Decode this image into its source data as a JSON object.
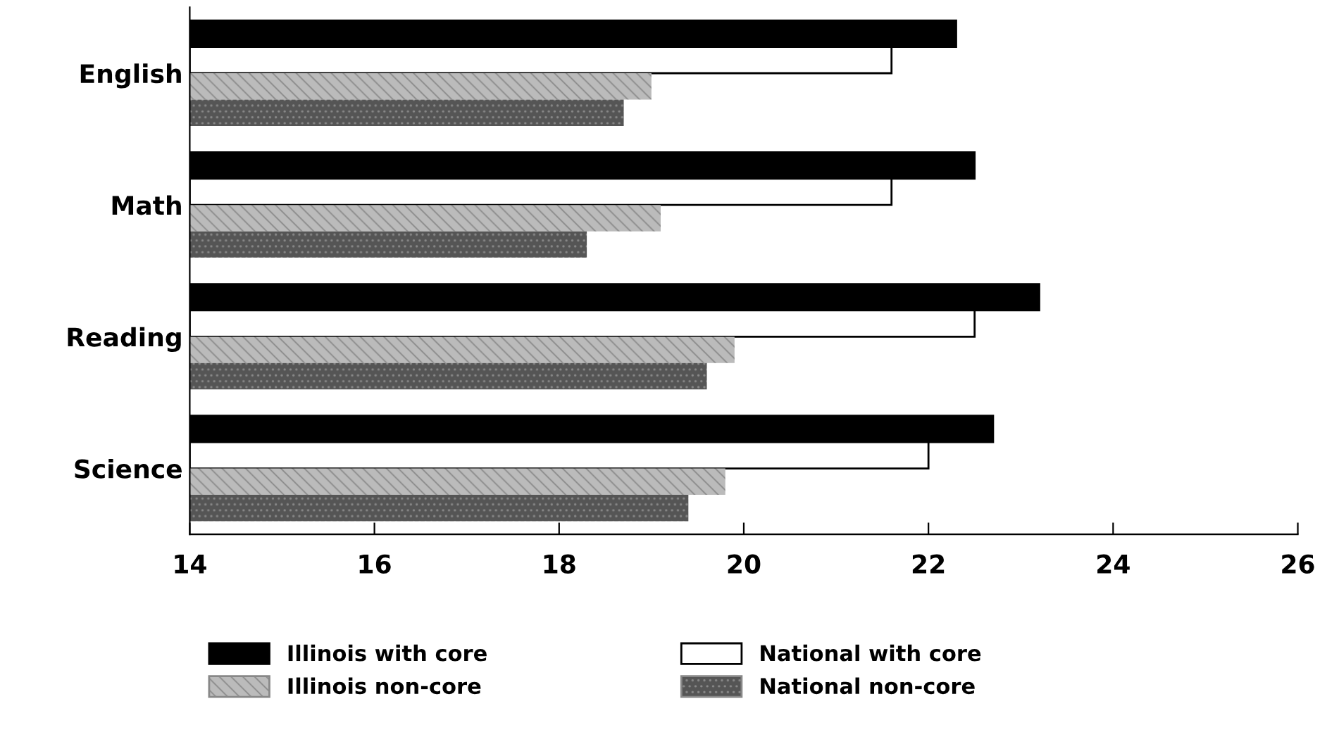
{
  "chart_data": {
    "type": "bar",
    "orientation": "horizontal",
    "categories": [
      "English",
      "Math",
      "Reading",
      "Science"
    ],
    "series": [
      {
        "name": "Illinois with core",
        "color": "#000000",
        "values": [
          22.3,
          22.5,
          23.2,
          22.7
        ]
      },
      {
        "name": "National with core",
        "color": "#ffffff",
        "values": [
          21.6,
          21.6,
          22.5,
          22.0
        ]
      },
      {
        "name": "Illinois non-core",
        "color": "#bbbbbb",
        "values": [
          19.0,
          19.1,
          19.9,
          19.8
        ]
      },
      {
        "name": "National non-core",
        "color": "#555555",
        "values": [
          18.7,
          18.3,
          19.6,
          19.4
        ]
      }
    ],
    "xlim": [
      14,
      26
    ],
    "xticks": [
      14,
      16,
      18,
      20,
      22,
      24,
      26
    ],
    "grid": false,
    "legend": "bottom"
  }
}
